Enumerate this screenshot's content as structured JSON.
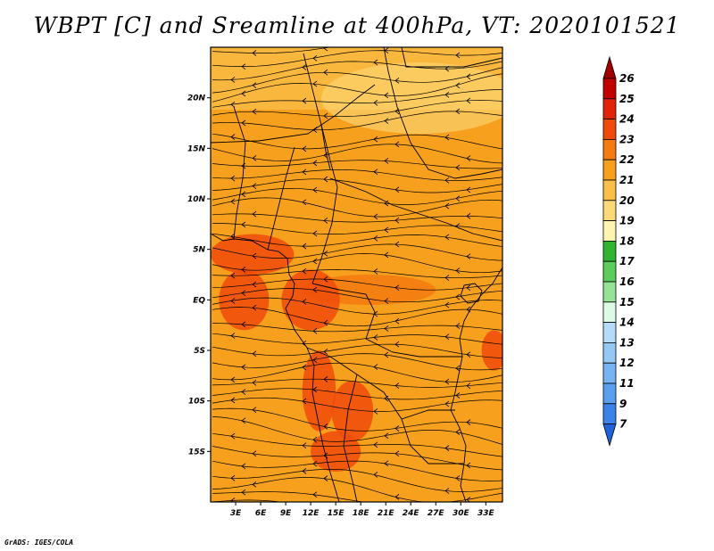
{
  "title": "WBPT [C] and Sreamline at 400hPa, VT: 2020101521",
  "credit": "GrADS: IGES/COLA",
  "map": {
    "lon_range": [
      0,
      35
    ],
    "lat_range": [
      -20,
      25
    ],
    "lat_ticks": [
      {
        "value": 20,
        "label": "20N"
      },
      {
        "value": 15,
        "label": "15N"
      },
      {
        "value": 10,
        "label": "10N"
      },
      {
        "value": 5,
        "label": "5N"
      },
      {
        "value": 0,
        "label": "EQ"
      },
      {
        "value": -5,
        "label": "5S"
      },
      {
        "value": -10,
        "label": "10S"
      },
      {
        "value": -15,
        "label": "15S"
      }
    ],
    "lon_ticks": [
      {
        "value": 3,
        "label": "3E"
      },
      {
        "value": 6,
        "label": "6E"
      },
      {
        "value": 9,
        "label": "9E"
      },
      {
        "value": 12,
        "label": "12E"
      },
      {
        "value": 15,
        "label": "15E"
      },
      {
        "value": 18,
        "label": "18E"
      },
      {
        "value": 21,
        "label": "21E"
      },
      {
        "value": 24,
        "label": "24E"
      },
      {
        "value": 27,
        "label": "27E"
      },
      {
        "value": 30,
        "label": "30E"
      },
      {
        "value": 33,
        "label": "33E"
      }
    ],
    "warm_regions": [
      {
        "name": "gulf-of-guinea",
        "lon": 5,
        "lat": 4.5,
        "rlon": 5,
        "rlat": 2,
        "level": 23
      },
      {
        "name": "west-coast",
        "lon": 4,
        "lat": 0,
        "rlon": 3,
        "rlat": 3,
        "level": 23
      },
      {
        "name": "gabon-congo",
        "lon": 12,
        "lat": 0,
        "rlon": 3.5,
        "rlat": 3,
        "level": 23
      },
      {
        "name": "angola-coast",
        "lon": 13,
        "lat": -9,
        "rlon": 2,
        "rlat": 4,
        "level": 23
      },
      {
        "name": "angola-inland",
        "lon": 17,
        "lat": -11,
        "rlon": 2.5,
        "rlat": 3,
        "level": 23
      },
      {
        "name": "southern-band",
        "lon": 15,
        "lat": -15,
        "rlon": 3,
        "rlat": 2,
        "level": 23
      },
      {
        "name": "east-coast",
        "lon": 34,
        "lat": -5,
        "rlon": 1.5,
        "rlat": 2,
        "level": 23
      },
      {
        "name": "central-band",
        "lon": 19,
        "lat": 1,
        "rlon": 8,
        "rlat": 1.5,
        "level": 22
      }
    ]
  },
  "colorbar": {
    "levels": [
      {
        "label": "26",
        "color": "#a00000"
      },
      {
        "label": "25",
        "color": "#c20000"
      },
      {
        "label": "24",
        "color": "#e0240a"
      },
      {
        "label": "23",
        "color": "#f04b0a"
      },
      {
        "label": "22",
        "color": "#f57a10"
      },
      {
        "label": "21",
        "color": "#f6a01e"
      },
      {
        "label": "20",
        "color": "#f9bf4a"
      },
      {
        "label": "19",
        "color": "#fcd978"
      },
      {
        "label": "18",
        "color": "#fdf4b0"
      },
      {
        "label": "17",
        "color": "#32b432"
      },
      {
        "label": "16",
        "color": "#5ccc5c"
      },
      {
        "label": "15",
        "color": "#96e296"
      },
      {
        "label": "14",
        "color": "#dcfae6"
      },
      {
        "label": "13",
        "color": "#b4dcf8"
      },
      {
        "label": "12",
        "color": "#96c8f6"
      },
      {
        "label": "11",
        "color": "#78b4f2"
      },
      {
        "label": "9",
        "color": "#5aa0ee"
      },
      {
        "label": "7",
        "color": "#3c82e8"
      },
      {
        "label": "",
        "color": "#1e64d8"
      }
    ]
  }
}
